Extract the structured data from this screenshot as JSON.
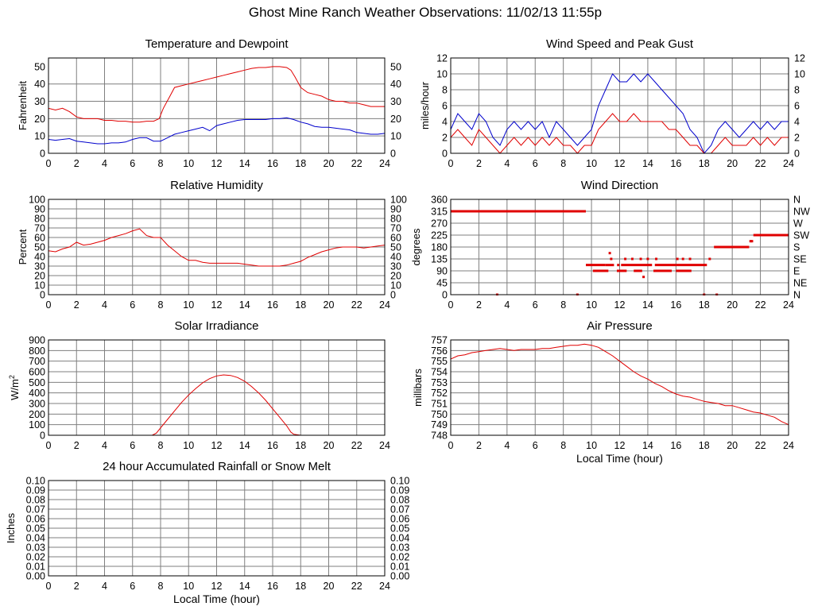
{
  "page": {
    "title": "Ghost Mine Ranch Weather Observations: 11/02/13 11:55p"
  },
  "colors": {
    "red": "#e00000",
    "blue": "#0000cc",
    "grid": "#7f7f7f"
  },
  "chart_data": [
    {
      "id": "temperature",
      "type": "line",
      "title": "Temperature and Dewpoint",
      "ylabel": "Fahrenheit",
      "xlim": [
        0,
        24
      ],
      "ylim": [
        0,
        55
      ],
      "xticks": [
        "0",
        "2",
        "4",
        "6",
        "8",
        "10",
        "12",
        "14",
        "16",
        "18",
        "20",
        "22",
        "24"
      ],
      "yticks": [
        "0",
        "10",
        "20",
        "30",
        "40",
        "50"
      ],
      "ytick_values": [
        0,
        10,
        20,
        30,
        40,
        50
      ],
      "grid": true,
      "right_axis": true,
      "series": [
        {
          "color": "#e00000",
          "x": [
            0,
            0.5,
            1,
            1.5,
            2,
            2.5,
            3,
            3.5,
            4,
            4.5,
            5,
            5.5,
            6,
            6.5,
            7,
            7.5,
            7.9,
            8.2,
            8.6,
            9,
            9.5,
            10,
            10.5,
            11,
            11.5,
            12,
            12.5,
            13,
            13.5,
            14,
            14.5,
            15,
            15.5,
            16,
            16.5,
            17,
            17.3,
            17.6,
            18,
            18.5,
            19,
            19.5,
            20,
            20.5,
            21,
            21.5,
            22,
            22.5,
            23,
            23.5,
            24
          ],
          "y": [
            26,
            25,
            26,
            24,
            21,
            20,
            20,
            20,
            19,
            19,
            18.5,
            18.5,
            18,
            18,
            18.5,
            18.5,
            20,
            26,
            32,
            38,
            39,
            40,
            41,
            42,
            43,
            44,
            45,
            46,
            47,
            48,
            49,
            49.5,
            49.5,
            50,
            50,
            49.5,
            48,
            44,
            38,
            35,
            34,
            33,
            31,
            30,
            30,
            29,
            29,
            28,
            27,
            27,
            27
          ]
        },
        {
          "color": "#0000cc",
          "x": [
            0,
            0.5,
            1,
            1.5,
            2,
            2.5,
            3,
            3.5,
            4,
            4.5,
            5,
            5.5,
            6,
            6.5,
            7,
            7.5,
            8,
            8.5,
            9,
            9.5,
            10,
            10.5,
            11,
            11.5,
            12,
            12.5,
            13,
            13.5,
            14,
            14.5,
            15,
            15.5,
            16,
            16.5,
            17,
            17.5,
            18,
            18.5,
            19,
            19.5,
            20,
            20.5,
            21,
            21.5,
            22,
            22.5,
            23,
            23.5,
            24
          ],
          "y": [
            8,
            7.5,
            8,
            8.5,
            7,
            6.5,
            6,
            5.5,
            5.5,
            6,
            6,
            6.5,
            8,
            9,
            9,
            7,
            7,
            9,
            11,
            12,
            13,
            14,
            15,
            13,
            16,
            17,
            18,
            19,
            19.5,
            19.5,
            19.5,
            19.5,
            20,
            20,
            20.5,
            19.5,
            18,
            17,
            15.5,
            15,
            15,
            14.5,
            14,
            13.5,
            12,
            11.5,
            11,
            11,
            11.5
          ]
        }
      ]
    },
    {
      "id": "wind_speed",
      "type": "line",
      "title": "Wind Speed and Peak Gust",
      "ylabel": "miles/hour",
      "xlim": [
        0,
        24
      ],
      "ylim": [
        0,
        12
      ],
      "xticks": [
        "0",
        "2",
        "4",
        "6",
        "8",
        "10",
        "12",
        "14",
        "16",
        "18",
        "20",
        "22",
        "24"
      ],
      "yticks": [
        "0",
        "2",
        "4",
        "6",
        "8",
        "10",
        "12"
      ],
      "ytick_values": [
        0,
        2,
        4,
        6,
        8,
        10,
        12
      ],
      "grid": true,
      "right_axis": true,
      "series": [
        {
          "color": "#0000cc",
          "x": [
            0,
            0.5,
            1,
            1.5,
            2,
            2.5,
            3,
            3.5,
            4,
            4.5,
            5,
            5.5,
            6,
            6.5,
            7,
            7.5,
            8,
            8.5,
            9,
            9.5,
            10,
            10.5,
            11,
            11.5,
            12,
            12.5,
            13,
            13.5,
            14,
            14.5,
            15,
            15.5,
            16,
            16.5,
            17,
            17.5,
            18,
            18.5,
            19,
            19.5,
            20,
            20.5,
            21,
            21.5,
            22,
            22.5,
            23,
            23.5,
            24
          ],
          "y": [
            3,
            5,
            4,
            3,
            5,
            4,
            2,
            1,
            3,
            4,
            3,
            4,
            3,
            4,
            2,
            4,
            3,
            2,
            1,
            2,
            3,
            6,
            8,
            10,
            9,
            9,
            10,
            9,
            10,
            9,
            8,
            7,
            6,
            5,
            3,
            2,
            0,
            1,
            3,
            4,
            3,
            2,
            3,
            4,
            3,
            4,
            3,
            4,
            4
          ]
        },
        {
          "color": "#e00000",
          "x": [
            0,
            0.5,
            1,
            1.5,
            2,
            2.5,
            3,
            3.5,
            4,
            4.5,
            5,
            5.5,
            6,
            6.5,
            7,
            7.5,
            8,
            8.5,
            9,
            9.5,
            10,
            10.5,
            11,
            11.5,
            12,
            12.5,
            13,
            13.5,
            14,
            14.5,
            15,
            15.5,
            16,
            16.5,
            17,
            17.5,
            18,
            18.5,
            19,
            19.5,
            20,
            20.5,
            21,
            21.5,
            22,
            22.5,
            23,
            23.5,
            24
          ],
          "y": [
            2,
            3,
            2,
            1,
            3,
            2,
            1,
            0,
            1,
            2,
            1,
            2,
            1,
            2,
            1,
            2,
            1,
            1,
            0,
            1,
            1,
            3,
            4,
            5,
            4,
            4,
            5,
            4,
            4,
            4,
            4,
            3,
            3,
            2,
            1,
            1,
            0,
            0,
            1,
            2,
            1,
            1,
            1,
            2,
            1,
            2,
            1,
            2,
            2
          ]
        }
      ]
    },
    {
      "id": "humidity",
      "type": "line",
      "title": "Relative Humidity",
      "ylabel": "Percent",
      "xlim": [
        0,
        24
      ],
      "ylim": [
        0,
        100
      ],
      "xticks": [
        "0",
        "2",
        "4",
        "6",
        "8",
        "10",
        "12",
        "14",
        "16",
        "18",
        "20",
        "22",
        "24"
      ],
      "yticks": [
        "0",
        "10",
        "20",
        "30",
        "40",
        "50",
        "60",
        "70",
        "80",
        "90",
        "100"
      ],
      "ytick_values": [
        0,
        10,
        20,
        30,
        40,
        50,
        60,
        70,
        80,
        90,
        100
      ],
      "grid": true,
      "right_axis": true,
      "series": [
        {
          "color": "#e00000",
          "x": [
            0,
            0.5,
            1,
            1.5,
            2,
            2.5,
            3,
            3.5,
            4,
            4.5,
            5,
            5.5,
            6,
            6.5,
            7,
            7.5,
            8,
            8.5,
            9,
            9.5,
            10,
            10.5,
            11,
            11.5,
            12,
            12.5,
            13,
            13.5,
            14,
            14.5,
            15,
            15.5,
            16,
            16.5,
            17,
            17.5,
            18,
            18.5,
            19,
            19.5,
            20,
            20.5,
            21,
            21.5,
            22,
            22.5,
            23,
            23.5,
            24
          ],
          "y": [
            46,
            45,
            48,
            50,
            55,
            52,
            53,
            55,
            57,
            60,
            62,
            64,
            67,
            69,
            62,
            60,
            60,
            52,
            46,
            40,
            36,
            36,
            34,
            33,
            33,
            33,
            33,
            33,
            32,
            31,
            30,
            30,
            30,
            30,
            31,
            33,
            35,
            39,
            42,
            45,
            47,
            49,
            50,
            50,
            50,
            49,
            50,
            51,
            52
          ]
        }
      ]
    },
    {
      "id": "wind_direction",
      "type": "scatter",
      "title": "Wind Direction",
      "ylabel": "degrees",
      "xlim": [
        0,
        24
      ],
      "ylim": [
        0,
        360
      ],
      "xticks": [
        "0",
        "2",
        "4",
        "6",
        "8",
        "10",
        "12",
        "14",
        "16",
        "18",
        "20",
        "22",
        "24"
      ],
      "yticks": [
        "0",
        "45",
        "90",
        "135",
        "180",
        "225",
        "270",
        "315",
        "360"
      ],
      "ytick_values": [
        0,
        45,
        90,
        135,
        180,
        225,
        270,
        315,
        360
      ],
      "right_labels": [
        "N",
        "NE",
        "E",
        "SE",
        "S",
        "SW",
        "W",
        "NW",
        "N"
      ],
      "grid": true,
      "color": "#e00000",
      "segments": [
        {
          "x0": 0,
          "x1": 9.6,
          "y": 315
        },
        {
          "x0": 9.6,
          "x1": 11.0,
          "y": 112
        },
        {
          "x0": 11.0,
          "x1": 11.6,
          "y": 112
        },
        {
          "x0": 12.1,
          "x1": 14.3,
          "y": 112
        },
        {
          "x0": 14.5,
          "x1": 16.0,
          "y": 112
        },
        {
          "x0": 16.0,
          "x1": 18.2,
          "y": 112
        },
        {
          "x0": 18.7,
          "x1": 21.2,
          "y": 180
        },
        {
          "x0": 21.5,
          "x1": 24,
          "y": 225
        },
        {
          "x0": 10.1,
          "x1": 11.2,
          "y": 90
        },
        {
          "x0": 11.8,
          "x1": 12.5,
          "y": 90
        },
        {
          "x0": 13.0,
          "x1": 13.6,
          "y": 90
        },
        {
          "x0": 14.4,
          "x1": 15.7,
          "y": 90
        },
        {
          "x0": 16.0,
          "x1": 17.1,
          "y": 90
        }
      ],
      "points": [
        {
          "x": 3.3,
          "y": 0
        },
        {
          "x": 9.0,
          "y": 0
        },
        {
          "x": 18.0,
          "y": 0
        },
        {
          "x": 18.9,
          "y": 0
        },
        {
          "x": 11.3,
          "y": 157
        },
        {
          "x": 11.4,
          "y": 135
        },
        {
          "x": 11.9,
          "y": 112
        },
        {
          "x": 12.4,
          "y": 135
        },
        {
          "x": 12.9,
          "y": 135
        },
        {
          "x": 13.5,
          "y": 135
        },
        {
          "x": 14.0,
          "y": 135
        },
        {
          "x": 14.6,
          "y": 135
        },
        {
          "x": 16.1,
          "y": 135
        },
        {
          "x": 16.5,
          "y": 135
        },
        {
          "x": 17.0,
          "y": 135
        },
        {
          "x": 18.4,
          "y": 135
        },
        {
          "x": 13.7,
          "y": 67
        },
        {
          "x": 21.3,
          "y": 202
        },
        {
          "x": 21.4,
          "y": 202
        }
      ]
    },
    {
      "id": "solar",
      "type": "line",
      "title": "Solar Irradiance",
      "ylabel": "W/m",
      "ylabel_sup": "2",
      "xlim": [
        0,
        24
      ],
      "ylim": [
        0,
        900
      ],
      "xticks": [
        "0",
        "2",
        "4",
        "6",
        "8",
        "10",
        "12",
        "14",
        "16",
        "18",
        "20",
        "22",
        "24"
      ],
      "yticks": [
        "0",
        "100",
        "200",
        "300",
        "400",
        "500",
        "600",
        "700",
        "800",
        "900"
      ],
      "ytick_values": [
        0,
        100,
        200,
        300,
        400,
        500,
        600,
        700,
        800,
        900
      ],
      "grid": true,
      "series": [
        {
          "color": "#e00000",
          "x": [
            0,
            7.4,
            7.7,
            8,
            8.5,
            9,
            9.5,
            10,
            10.5,
            11,
            11.5,
            12,
            12.5,
            13,
            13.5,
            14,
            14.5,
            15,
            15.5,
            16,
            16.5,
            17,
            17.3,
            17.5,
            18,
            24
          ],
          "y": [
            0,
            0,
            20,
            70,
            150,
            230,
            310,
            380,
            440,
            495,
            535,
            560,
            570,
            565,
            545,
            510,
            460,
            400,
            330,
            250,
            170,
            90,
            30,
            10,
            0,
            0
          ]
        }
      ]
    },
    {
      "id": "pressure",
      "type": "line",
      "title": "Air Pressure",
      "ylabel": "millibars",
      "xlabel": "Local Time (hour)",
      "xlim": [
        0,
        24
      ],
      "ylim": [
        748,
        757
      ],
      "xticks": [
        "0",
        "2",
        "4",
        "6",
        "8",
        "10",
        "12",
        "14",
        "16",
        "18",
        "20",
        "22",
        "24"
      ],
      "yticks": [
        "748",
        "749",
        "750",
        "751",
        "752",
        "753",
        "754",
        "755",
        "756",
        "757"
      ],
      "ytick_values": [
        748,
        749,
        750,
        751,
        752,
        753,
        754,
        755,
        756,
        757
      ],
      "grid": true,
      "series": [
        {
          "color": "#e00000",
          "x": [
            0,
            0.5,
            1,
            1.5,
            2,
            2.5,
            3,
            3.5,
            4,
            4.5,
            5,
            5.5,
            6,
            6.5,
            7,
            7.5,
            8,
            8.5,
            9,
            9.5,
            10,
            10.5,
            11,
            11.5,
            12,
            12.5,
            13,
            13.5,
            14,
            14.5,
            15,
            15.5,
            16,
            16.5,
            17,
            17.5,
            18,
            18.5,
            19,
            19.5,
            20,
            20.5,
            21,
            21.5,
            22,
            22.5,
            23,
            23.5,
            24
          ],
          "y": [
            755.2,
            755.5,
            755.6,
            755.8,
            755.9,
            756.0,
            756.1,
            756.2,
            756.1,
            756.0,
            756.1,
            756.1,
            756.1,
            756.2,
            756.2,
            756.3,
            756.4,
            756.5,
            756.5,
            756.6,
            756.5,
            756.3,
            755.9,
            755.5,
            755.0,
            754.5,
            754.0,
            753.6,
            753.3,
            752.9,
            752.6,
            752.2,
            751.9,
            751.7,
            751.6,
            751.4,
            751.2,
            751.1,
            751.0,
            750.8,
            750.8,
            750.6,
            750.4,
            750.2,
            750.1,
            749.9,
            749.7,
            749.3,
            749.0
          ]
        }
      ]
    },
    {
      "id": "rainfall",
      "type": "line",
      "title": "24 hour Accumulated Rainfall or Snow Melt",
      "ylabel": "Inches",
      "xlabel": "Local Time (hour)",
      "xlim": [
        0,
        24
      ],
      "ylim": [
        0,
        0.1
      ],
      "xticks": [
        "0",
        "2",
        "4",
        "6",
        "8",
        "10",
        "12",
        "14",
        "16",
        "18",
        "20",
        "22",
        "24"
      ],
      "yticks": [
        "0.00",
        "0.01",
        "0.02",
        "0.03",
        "0.04",
        "0.05",
        "0.06",
        "0.07",
        "0.08",
        "0.09",
        "0.10"
      ],
      "ytick_values": [
        0,
        0.01,
        0.02,
        0.03,
        0.04,
        0.05,
        0.06,
        0.07,
        0.08,
        0.09,
        0.1
      ],
      "grid": true,
      "right_axis": true,
      "series": [
        {
          "color": "#e00000",
          "x": [
            0,
            24
          ],
          "y": [
            0,
            0
          ]
        }
      ]
    }
  ]
}
